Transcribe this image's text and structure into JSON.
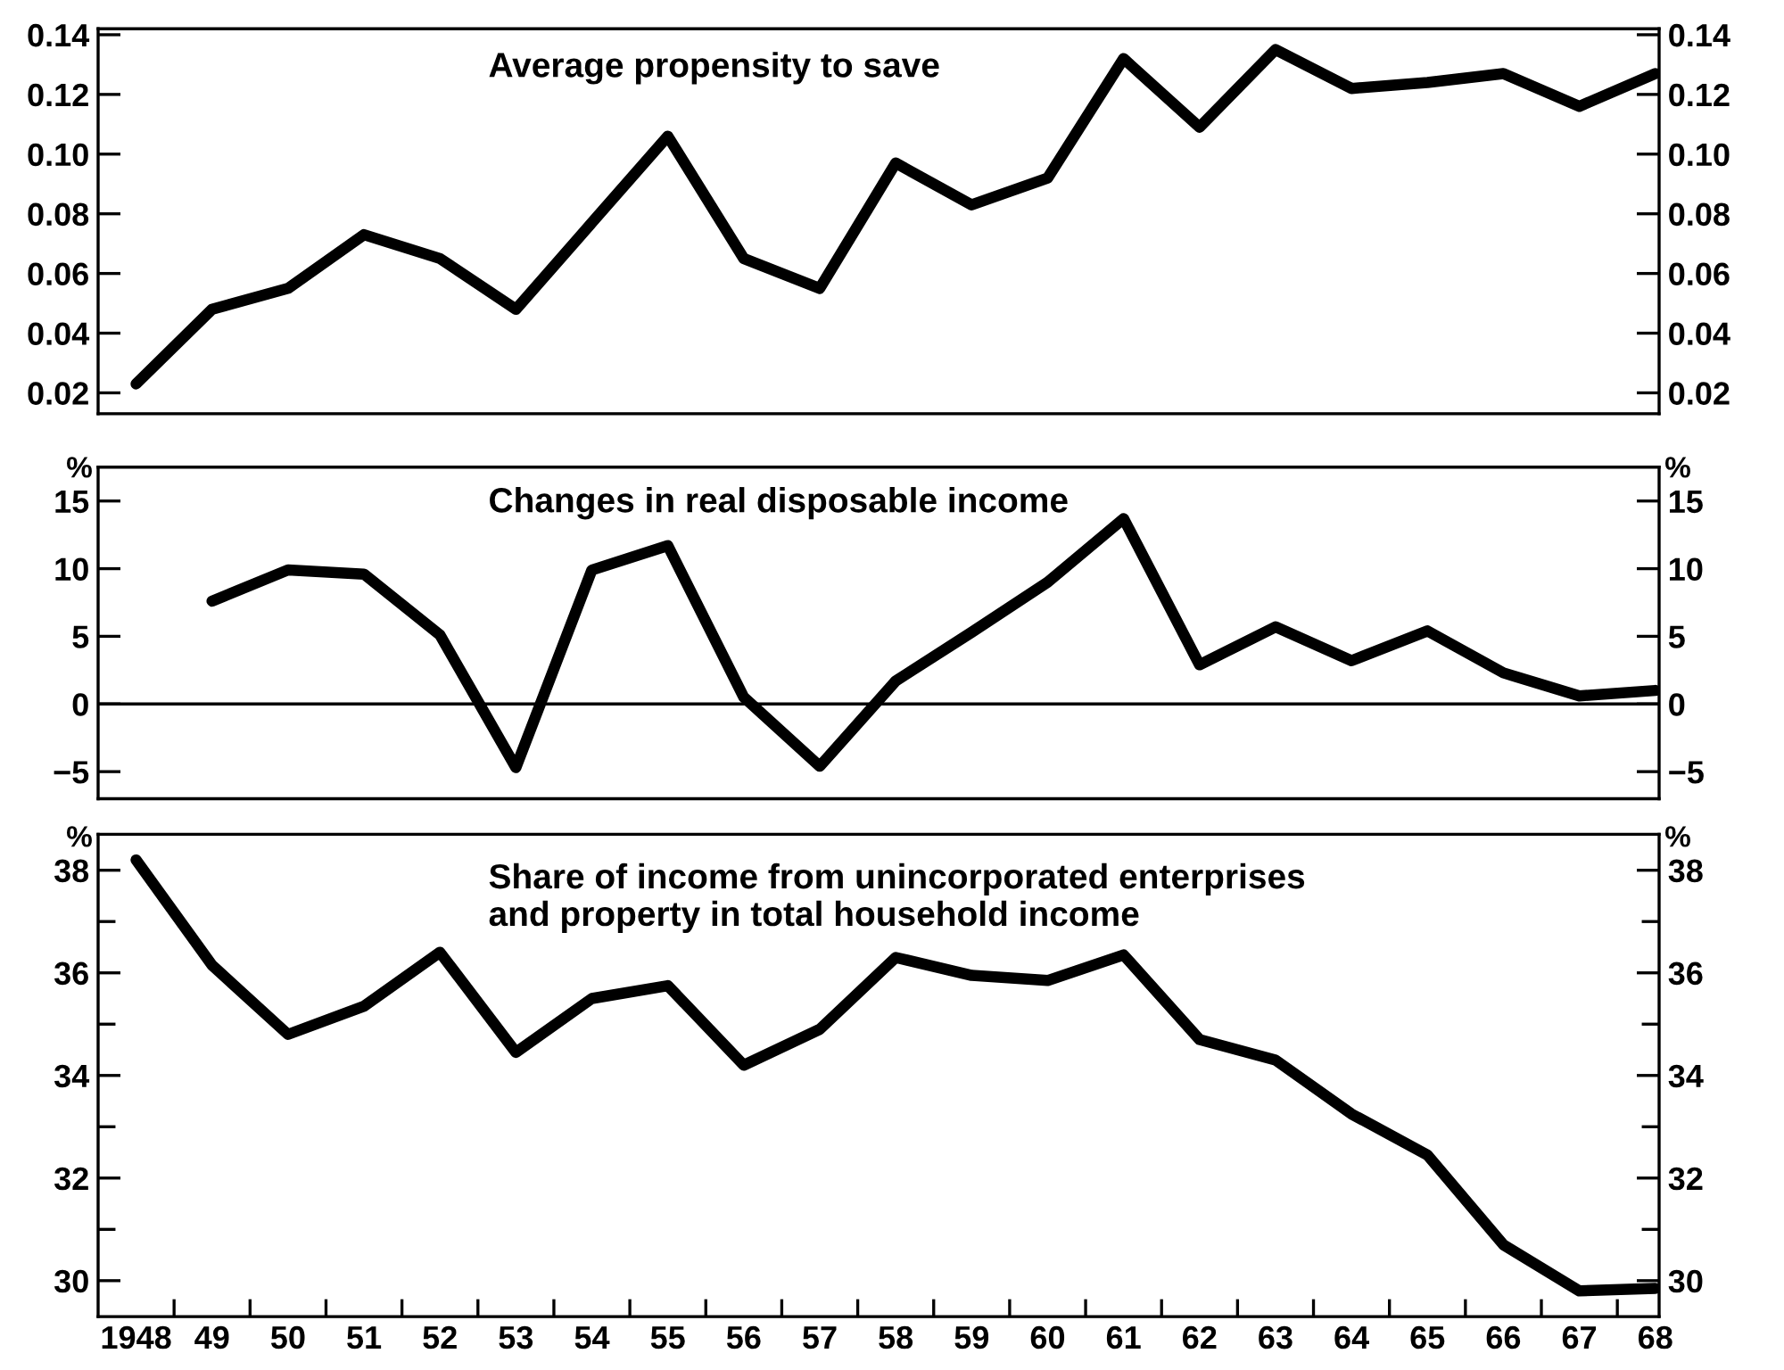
{
  "chart_data": [
    {
      "type": "line",
      "title": "Average propensity to save",
      "x": [
        1948,
        1949,
        1950,
        1951,
        1952,
        1953,
        1954,
        1955,
        1956,
        1957,
        1958,
        1959,
        1960,
        1961,
        1962,
        1963,
        1964,
        1965,
        1966,
        1967,
        1968
      ],
      "series": [
        {
          "color": "#000000",
          "values": [
            0.023,
            0.048,
            0.055,
            0.073,
            0.065,
            0.048,
            0.077,
            0.106,
            0.065,
            0.055,
            0.097,
            0.083,
            0.092,
            0.132,
            0.109,
            0.135,
            0.122,
            0.124,
            0.127,
            0.116,
            0.127
          ]
        }
      ],
      "xlim": [
        1947.5,
        1968.05
      ],
      "ylim": [
        0.013,
        0.142
      ],
      "yticks": [
        {
          "value": 0.02,
          "label": "0.02"
        },
        {
          "value": 0.04,
          "label": "0.04"
        },
        {
          "value": 0.06,
          "label": "0.06"
        },
        {
          "value": 0.08,
          "label": "0.08"
        },
        {
          "value": 0.1,
          "label": "0.10"
        },
        {
          "value": 0.12,
          "label": "0.12"
        },
        {
          "value": 0.14,
          "label": "0.14"
        }
      ],
      "y2lim": [
        0.013,
        0.142
      ],
      "y2ticks": [
        {
          "value": 0.02,
          "label": "0.02"
        },
        {
          "value": 0.04,
          "label": "0.04"
        },
        {
          "value": 0.06,
          "label": "0.06"
        },
        {
          "value": 0.08,
          "label": "0.08"
        },
        {
          "value": 0.1,
          "label": "0.10"
        },
        {
          "value": 0.12,
          "label": "0.12"
        },
        {
          "value": 0.14,
          "label": "0.14"
        }
      ],
      "tick_labels": "y"
    },
    {
      "type": "line",
      "title": "Changes in real disposable income",
      "ylabel": "%",
      "y2label": "%",
      "series": [
        {
          "color": "#000000",
          "x": [
            1949,
            1950,
            1951,
            1952,
            1953,
            1954,
            1955,
            1956,
            1957,
            1958,
            1959,
            1960,
            1961,
            1962,
            1963,
            1964,
            1965,
            1966,
            1967,
            1968
          ],
          "values": [
            7.6,
            9.9,
            9.6,
            5.1,
            -4.7,
            9.9,
            11.7,
            0.5,
            -4.6,
            1.7,
            5.3,
            9.0,
            13.7,
            2.9,
            5.7,
            3.2,
            5.4,
            2.3,
            0.6,
            1.0
          ]
        }
      ],
      "xlim": [
        1947.5,
        1968.05
      ],
      "ylim": [
        -7,
        17.5
      ],
      "yticks": [
        {
          "value": -5,
          "label": "−5"
        },
        0,
        5,
        10,
        15
      ],
      "y2lim": [
        -7,
        17.5
      ],
      "y2ticks": [
        {
          "value": -5,
          "label": "−5"
        },
        0,
        5,
        10,
        15
      ],
      "ref_lines": [
        {
          "axis": "y",
          "value": 0,
          "color": "#000000"
        }
      ],
      "tick_labels": "y"
    },
    {
      "type": "line",
      "title": "Share of income from unincorporated enterprises\nand property in total household income",
      "ylabel": "%",
      "y2label": "%",
      "x": [
        1948,
        1949,
        1950,
        1951,
        1952,
        1953,
        1954,
        1955,
        1956,
        1957,
        1958,
        1959,
        1960,
        1961,
        1962,
        1963,
        1964,
        1965,
        1966,
        1967,
        1968
      ],
      "series": [
        {
          "color": "#000000",
          "values": [
            38.2,
            36.15,
            34.8,
            35.35,
            36.4,
            34.45,
            35.5,
            35.75,
            34.2,
            34.9,
            36.3,
            35.95,
            35.85,
            36.35,
            34.7,
            34.3,
            33.25,
            32.45,
            30.7,
            29.8,
            29.85
          ]
        }
      ],
      "xlim": [
        1947.5,
        1968.05
      ],
      "ylim": [
        29.3,
        38.7
      ],
      "yticks": [
        30,
        {
          "value": 31,
          "label": null
        },
        32,
        {
          "value": 33,
          "label": null
        },
        34,
        {
          "value": 35,
          "label": null
        },
        36,
        {
          "value": 37,
          "label": null
        },
        38
      ],
      "y2lim": [
        29.3,
        38.7
      ],
      "y2ticks": [
        30,
        {
          "value": 31,
          "label": null
        },
        32,
        {
          "value": 33,
          "label": null
        },
        34,
        {
          "value": 35,
          "label": null
        },
        36,
        {
          "value": 37,
          "label": null
        },
        38
      ],
      "xticks": [
        {
          "value": 1948,
          "label": "1948"
        },
        {
          "value": 1948.5,
          "label": null
        },
        {
          "value": 1949,
          "label": "49"
        },
        {
          "value": 1949.5,
          "label": null
        },
        {
          "value": 1950,
          "label": "50"
        },
        {
          "value": 1950.5,
          "label": null
        },
        {
          "value": 1951,
          "label": "51"
        },
        {
          "value": 1951.5,
          "label": null
        },
        {
          "value": 1952,
          "label": "52"
        },
        {
          "value": 1952.5,
          "label": null
        },
        {
          "value": 1953,
          "label": "53"
        },
        {
          "value": 1953.5,
          "label": null
        },
        {
          "value": 1954,
          "label": "54"
        },
        {
          "value": 1954.5,
          "label": null
        },
        {
          "value": 1955,
          "label": "55"
        },
        {
          "value": 1955.5,
          "label": null
        },
        {
          "value": 1956,
          "label": "56"
        },
        {
          "value": 1956.5,
          "label": null
        },
        {
          "value": 1957,
          "label": "57"
        },
        {
          "value": 1957.5,
          "label": null
        },
        {
          "value": 1958,
          "label": "58"
        },
        {
          "value": 1958.5,
          "label": null
        },
        {
          "value": 1959,
          "label": "59"
        },
        {
          "value": 1959.5,
          "label": null
        },
        {
          "value": 1960,
          "label": "60"
        },
        {
          "value": 1960.5,
          "label": null
        },
        {
          "value": 1961,
          "label": "61"
        },
        {
          "value": 1961.5,
          "label": null
        },
        {
          "value": 1962,
          "label": "62"
        },
        {
          "value": 1962.5,
          "label": null
        },
        {
          "value": 1963,
          "label": "63"
        },
        {
          "value": 1963.5,
          "label": null
        },
        {
          "value": 1964,
          "label": "64"
        },
        {
          "value": 1964.5,
          "label": null
        },
        {
          "value": 1965,
          "label": "65"
        },
        {
          "value": 1965.5,
          "label": null
        },
        {
          "value": 1966,
          "label": "66"
        },
        {
          "value": 1966.5,
          "label": null
        },
        {
          "value": 1967,
          "label": "67"
        },
        {
          "value": 1967.5,
          "label": null
        },
        {
          "value": 1968,
          "label": "68"
        }
      ]
    }
  ]
}
